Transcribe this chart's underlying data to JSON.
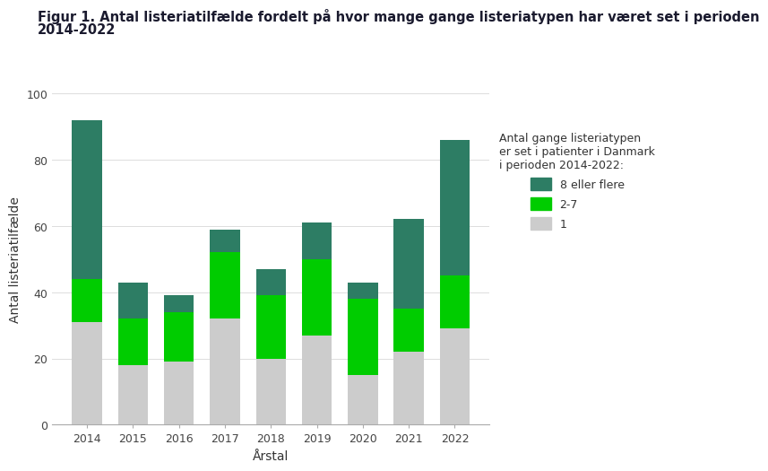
{
  "years": [
    "2014",
    "2015",
    "2016",
    "2017",
    "2018",
    "2019",
    "2020",
    "2021",
    "2022"
  ],
  "seg1_gray": [
    31,
    18,
    19,
    32,
    20,
    27,
    15,
    22,
    29
  ],
  "seg2_green": [
    13,
    14,
    15,
    20,
    19,
    23,
    23,
    13,
    16
  ],
  "seg3_dark": [
    48,
    11,
    5,
    7,
    8,
    11,
    5,
    27,
    41
  ],
  "color_gray": "#cccccc",
  "color_green": "#00cc00",
  "color_dark": "#2d7d64",
  "title_line1": "Figur 1. Antal listeriatilfælde fordelt på hvor mange gange listeriatypen har været set i perioden",
  "title_line2": "2014-2022",
  "title_color": "#1a1a2e",
  "xlabel": "Årstal",
  "ylabel": "Antal listeriatilfælde",
  "ylim": [
    0,
    100
  ],
  "yticks": [
    0,
    20,
    40,
    60,
    80,
    100
  ],
  "legend_title": "Antal gange listeriatypen\ner set i patienter i Danmark\ni perioden 2014-2022:",
  "legend_labels": [
    "8 eller flere",
    "2-7",
    "1"
  ],
  "background_color": "#ffffff",
  "title_fontsize": 10.5,
  "axis_label_fontsize": 10,
  "tick_fontsize": 9,
  "legend_fontsize": 9
}
